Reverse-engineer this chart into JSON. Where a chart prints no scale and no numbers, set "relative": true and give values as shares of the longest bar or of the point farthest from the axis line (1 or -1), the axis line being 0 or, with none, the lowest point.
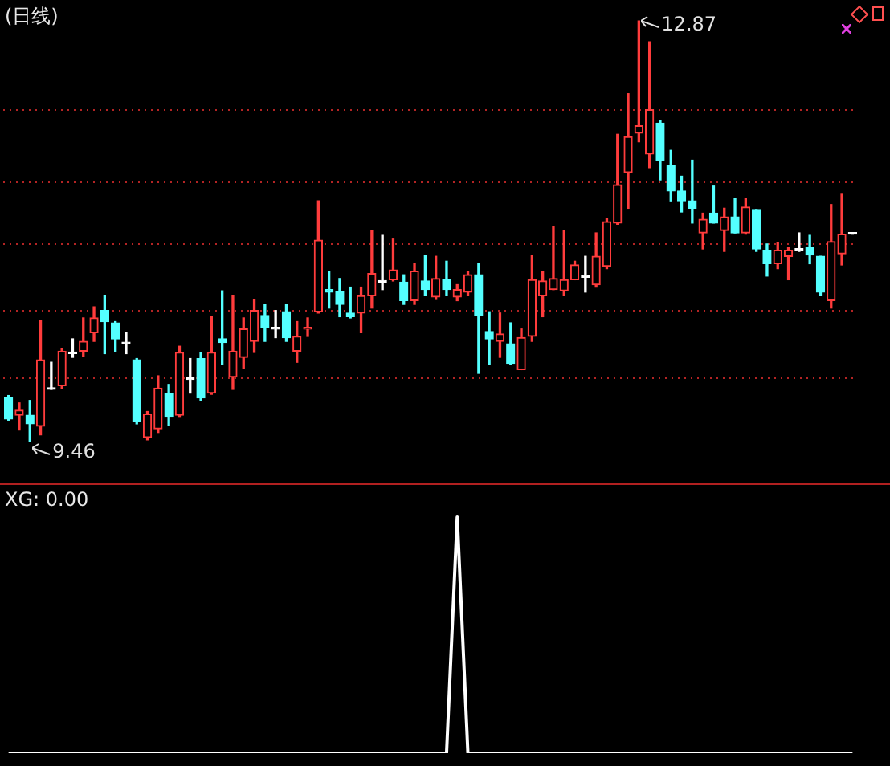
{
  "chart_data": [
    {
      "type": "candlestick",
      "title": "(日线)",
      "categories": [
        null,
        null,
        null,
        null,
        null,
        null,
        null,
        null,
        null,
        null,
        null,
        null,
        null,
        null,
        null,
        null,
        null,
        null,
        null,
        null,
        null,
        null,
        null,
        null,
        null,
        null,
        null,
        null,
        null,
        null,
        null,
        null,
        null,
        null,
        null,
        null,
        null,
        null,
        null,
        null,
        null,
        null,
        null,
        null,
        null,
        null,
        null,
        null,
        null,
        null,
        null,
        null,
        null,
        null,
        null,
        null,
        null,
        null,
        null,
        null,
        null,
        null,
        null,
        null,
        null,
        null,
        null,
        null,
        null,
        null,
        null,
        null,
        null,
        null,
        null,
        null,
        null,
        null,
        null,
        null
      ],
      "ohlc": [
        [
          9.81,
          9.83,
          9.63,
          9.64
        ],
        [
          9.67,
          9.77,
          9.55,
          9.71
        ],
        [
          9.67,
          9.79,
          9.46,
          9.6
        ],
        [
          9.58,
          10.44,
          9.51,
          10.12
        ],
        [
          9.89,
          10.1,
          9.88,
          9.88
        ],
        [
          9.91,
          10.21,
          9.89,
          10.19
        ],
        [
          10.18,
          10.29,
          10.14,
          10.17
        ],
        [
          10.19,
          10.46,
          10.15,
          10.27
        ],
        [
          10.34,
          10.55,
          10.27,
          10.46
        ],
        [
          10.52,
          10.64,
          10.17,
          10.43
        ],
        [
          10.42,
          10.43,
          10.19,
          10.29
        ],
        [
          10.26,
          10.34,
          10.17,
          10.25
        ],
        [
          10.12,
          10.13,
          9.6,
          9.62
        ],
        [
          9.49,
          9.7,
          9.47,
          9.68
        ],
        [
          9.56,
          9.99,
          9.53,
          9.89
        ],
        [
          9.85,
          9.92,
          9.59,
          9.66
        ],
        [
          9.67,
          10.23,
          9.66,
          10.18
        ],
        [
          9.97,
          10.13,
          9.85,
          9.96
        ],
        [
          10.13,
          10.18,
          9.79,
          9.81
        ],
        [
          9.85,
          10.47,
          9.84,
          10.18
        ],
        [
          10.29,
          10.68,
          10.08,
          10.26
        ],
        [
          9.98,
          10.64,
          9.88,
          10.19
        ],
        [
          10.14,
          10.46,
          10.05,
          10.37
        ],
        [
          10.27,
          10.61,
          10.18,
          10.52
        ],
        [
          10.48,
          10.57,
          10.27,
          10.38
        ],
        [
          10.38,
          10.52,
          10.3,
          10.37
        ],
        [
          10.51,
          10.57,
          10.27,
          10.3
        ],
        [
          10.19,
          10.43,
          10.1,
          10.31
        ],
        [
          10.37,
          10.46,
          10.31,
          10.38
        ],
        [
          10.51,
          11.41,
          10.5,
          11.09
        ],
        [
          10.69,
          10.84,
          10.54,
          10.67
        ],
        [
          10.67,
          10.78,
          10.47,
          10.57
        ],
        [
          10.5,
          10.71,
          10.46,
          10.47
        ],
        [
          10.5,
          10.71,
          10.34,
          10.64
        ],
        [
          10.64,
          11.17,
          10.54,
          10.82
        ],
        [
          10.76,
          11.13,
          10.69,
          10.75
        ],
        [
          10.77,
          11.1,
          10.76,
          10.85
        ],
        [
          10.75,
          10.81,
          10.57,
          10.6
        ],
        [
          10.6,
          10.9,
          10.57,
          10.84
        ],
        [
          10.76,
          10.97,
          10.64,
          10.69
        ],
        [
          10.63,
          10.96,
          10.61,
          10.78
        ],
        [
          10.77,
          10.92,
          10.64,
          10.69
        ],
        [
          10.63,
          10.73,
          10.6,
          10.69
        ],
        [
          10.67,
          10.84,
          10.64,
          10.81
        ],
        [
          10.81,
          10.9,
          10.01,
          10.48
        ],
        [
          10.35,
          10.51,
          10.08,
          10.29
        ],
        [
          10.27,
          10.5,
          10.14,
          10.33
        ],
        [
          10.25,
          10.42,
          10.08,
          10.09
        ],
        [
          10.04,
          10.37,
          10.04,
          10.3
        ],
        [
          10.31,
          10.97,
          10.27,
          10.77
        ],
        [
          10.64,
          10.84,
          10.47,
          10.76
        ],
        [
          10.69,
          11.2,
          10.69,
          10.78
        ],
        [
          10.68,
          11.17,
          10.64,
          10.77
        ],
        [
          10.77,
          10.92,
          10.77,
          10.89
        ],
        [
          10.8,
          10.96,
          10.67,
          10.79
        ],
        [
          10.73,
          11.15,
          10.71,
          10.96
        ],
        [
          10.88,
          11.27,
          10.86,
          11.24
        ],
        [
          11.23,
          11.95,
          11.22,
          11.54
        ],
        [
          11.64,
          12.28,
          11.35,
          11.93
        ],
        [
          11.96,
          12.87,
          11.89,
          12.02
        ],
        [
          11.79,
          12.7,
          11.68,
          12.15
        ],
        [
          12.04,
          12.06,
          11.58,
          11.74
        ],
        [
          11.7,
          11.82,
          11.41,
          11.49
        ],
        [
          11.49,
          11.61,
          11.32,
          11.41
        ],
        [
          11.41,
          11.74,
          11.23,
          11.35
        ],
        [
          11.15,
          11.31,
          11.02,
          11.26
        ],
        [
          11.31,
          11.53,
          11.23,
          11.23
        ],
        [
          11.17,
          11.35,
          11.0,
          11.28
        ],
        [
          11.28,
          11.43,
          11.15,
          11.15
        ],
        [
          11.15,
          11.43,
          11.14,
          11.36
        ],
        [
          11.34,
          11.34,
          11.0,
          11.02
        ],
        [
          11.01,
          11.06,
          10.8,
          10.9
        ],
        [
          10.9,
          11.07,
          10.86,
          11.01
        ],
        [
          10.96,
          11.03,
          10.77,
          11.01
        ],
        [
          11.02,
          11.15,
          11.0,
          11.01
        ],
        [
          11.03,
          11.13,
          10.9,
          10.97
        ],
        [
          10.96,
          10.96,
          10.64,
          10.67
        ],
        [
          10.6,
          11.38,
          10.54,
          11.08
        ],
        [
          10.98,
          11.47,
          10.89,
          11.14
        ],
        [
          11.15,
          11.15,
          11.14,
          11.14
        ]
      ],
      "colors": [
        "#54ffff",
        "#ff3c3c",
        "#54ffff",
        "#ff3c3c",
        "#ffffff",
        "#ff3c3c",
        "#ffffff",
        "#ff3c3c",
        "#ff3c3c",
        "#54ffff",
        "#54ffff",
        "#ffffff",
        "#54ffff",
        "#ff3c3c",
        "#ff3c3c",
        "#54ffff",
        "#ff3c3c",
        "#ffffff",
        "#54ffff",
        "#ff3c3c",
        "#54ffff",
        "#ff3c3c",
        "#ff3c3c",
        "#ff3c3c",
        "#54ffff",
        "#ffffff",
        "#54ffff",
        "#ff3c3c",
        "#ff3c3c",
        "#ff3c3c",
        "#54ffff",
        "#54ffff",
        "#54ffff",
        "#ff3c3c",
        "#ff3c3c",
        "#ffffff",
        "#ff3c3c",
        "#54ffff",
        "#ff3c3c",
        "#54ffff",
        "#ff3c3c",
        "#54ffff",
        "#ff3c3c",
        "#ff3c3c",
        "#54ffff",
        "#54ffff",
        "#ff3c3c",
        "#54ffff",
        "#ff3c3c",
        "#ff3c3c",
        "#ff3c3c",
        "#ff3c3c",
        "#ff3c3c",
        "#ff3c3c",
        "#ffffff",
        "#ff3c3c",
        "#ff3c3c",
        "#ff3c3c",
        "#ff3c3c",
        "#ff3c3c",
        "#ff3c3c",
        "#54ffff",
        "#54ffff",
        "#54ffff",
        "#54ffff",
        "#ff3c3c",
        "#54ffff",
        "#ff3c3c",
        "#54ffff",
        "#ff3c3c",
        "#54ffff",
        "#54ffff",
        "#ff3c3c",
        "#ff3c3c",
        "#ffffff",
        "#54ffff",
        "#54ffff",
        "#ff3c3c",
        "#ff3c3c",
        "#ffffff"
      ],
      "yticks": [
        {
          "value": 9.97,
          "label": null
        },
        {
          "value": 10.52,
          "label": null
        },
        {
          "value": 11.06,
          "label": null
        },
        {
          "value": 11.56,
          "label": null
        },
        {
          "value": 12.15,
          "label": null
        }
      ],
      "grid": "y",
      "tick_labels": false,
      "annotations": [
        "12.87",
        "9.46"
      ]
    },
    {
      "type": "line",
      "title": "XG: 0.00",
      "relative": true,
      "tick_labels": false,
      "categories": [
        null,
        null,
        null,
        null,
        null,
        null,
        null,
        null,
        null,
        null,
        null,
        null,
        null,
        null,
        null,
        null,
        null,
        null,
        null,
        null,
        null,
        null,
        null,
        null,
        null,
        null,
        null,
        null,
        null,
        null,
        null,
        null,
        null,
        null,
        null,
        null,
        null,
        null,
        null,
        null,
        null,
        null,
        null,
        null,
        null,
        null,
        null,
        null,
        null,
        null,
        null,
        null,
        null,
        null,
        null,
        null,
        null,
        null,
        null,
        null,
        null,
        null,
        null,
        null,
        null,
        null,
        null,
        null,
        null,
        null,
        null,
        null,
        null,
        null,
        null,
        null,
        null,
        null,
        null,
        null
      ],
      "series": [
        {
          "color": "#ffffff",
          "values": [
            0,
            0,
            0,
            0,
            0,
            0,
            0,
            0,
            0,
            0,
            0,
            0,
            0,
            0,
            0,
            0,
            0,
            0,
            0,
            0,
            0,
            0,
            0,
            0,
            0,
            0,
            0,
            0,
            0,
            0,
            0,
            0,
            0,
            0,
            0,
            0,
            0,
            0,
            0,
            0,
            0,
            0,
            1,
            0,
            0,
            0,
            0,
            0,
            0,
            0,
            0,
            0,
            0,
            0,
            0,
            0,
            0,
            0,
            0,
            0,
            0,
            0,
            0,
            0,
            0,
            0,
            0,
            0,
            0,
            0,
            0,
            0,
            0,
            0,
            0,
            0,
            0,
            0,
            0,
            0
          ]
        }
      ]
    }
  ]
}
